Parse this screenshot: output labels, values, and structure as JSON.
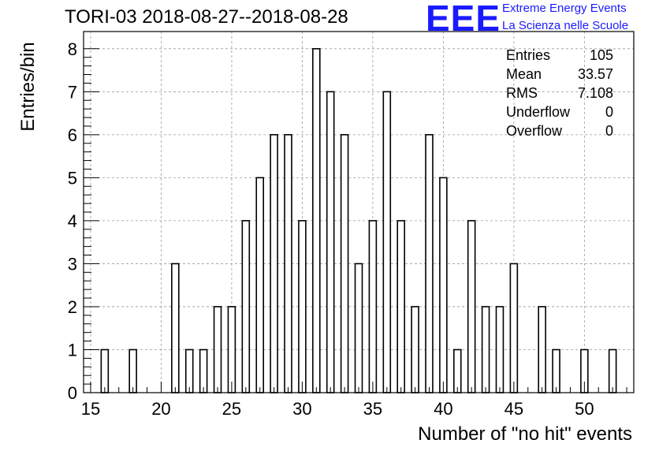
{
  "chart_data": {
    "type": "bar",
    "title": "TORI-03 2018-08-27--2018-08-28",
    "xlabel": "Number of \"no hit\" events",
    "ylabel": "Entries/bin",
    "xlim": [
      14.5,
      53.5
    ],
    "ylim": [
      0,
      8.4
    ],
    "xticks": [
      "15",
      "20",
      "25",
      "30",
      "35",
      "40",
      "45",
      "50"
    ],
    "yticks": [
      "0",
      "1",
      "2",
      "3",
      "4",
      "5",
      "6",
      "7",
      "8"
    ],
    "grid": true,
    "bin_width": 1,
    "bar_width_fraction": 0.5,
    "x": [
      16,
      18,
      21,
      22,
      23,
      24,
      25,
      26,
      27,
      28,
      29,
      30,
      31,
      32,
      33,
      34,
      35,
      36,
      37,
      38,
      39,
      40,
      41,
      42,
      43,
      44,
      45,
      47,
      48,
      50,
      52
    ],
    "values": [
      1,
      1,
      3,
      1,
      1,
      2,
      2,
      4,
      5,
      6,
      6,
      4,
      8,
      7,
      6,
      3,
      4,
      7,
      4,
      2,
      6,
      5,
      1,
      4,
      2,
      2,
      3,
      2,
      1,
      1,
      1
    ],
    "stats": [
      {
        "label": "Entries",
        "value": "105"
      },
      {
        "label": "Mean",
        "value": "33.57"
      },
      {
        "label": "RMS",
        "value": "7.108"
      },
      {
        "label": "Underflow",
        "value": "0"
      },
      {
        "label": "Overflow",
        "value": "0"
      }
    ]
  },
  "logo": {
    "mark": "EEE",
    "line1": "Extreme Energy Events",
    "line2": "La Scienza nelle Scuole",
    "color": "#1a1aff"
  }
}
